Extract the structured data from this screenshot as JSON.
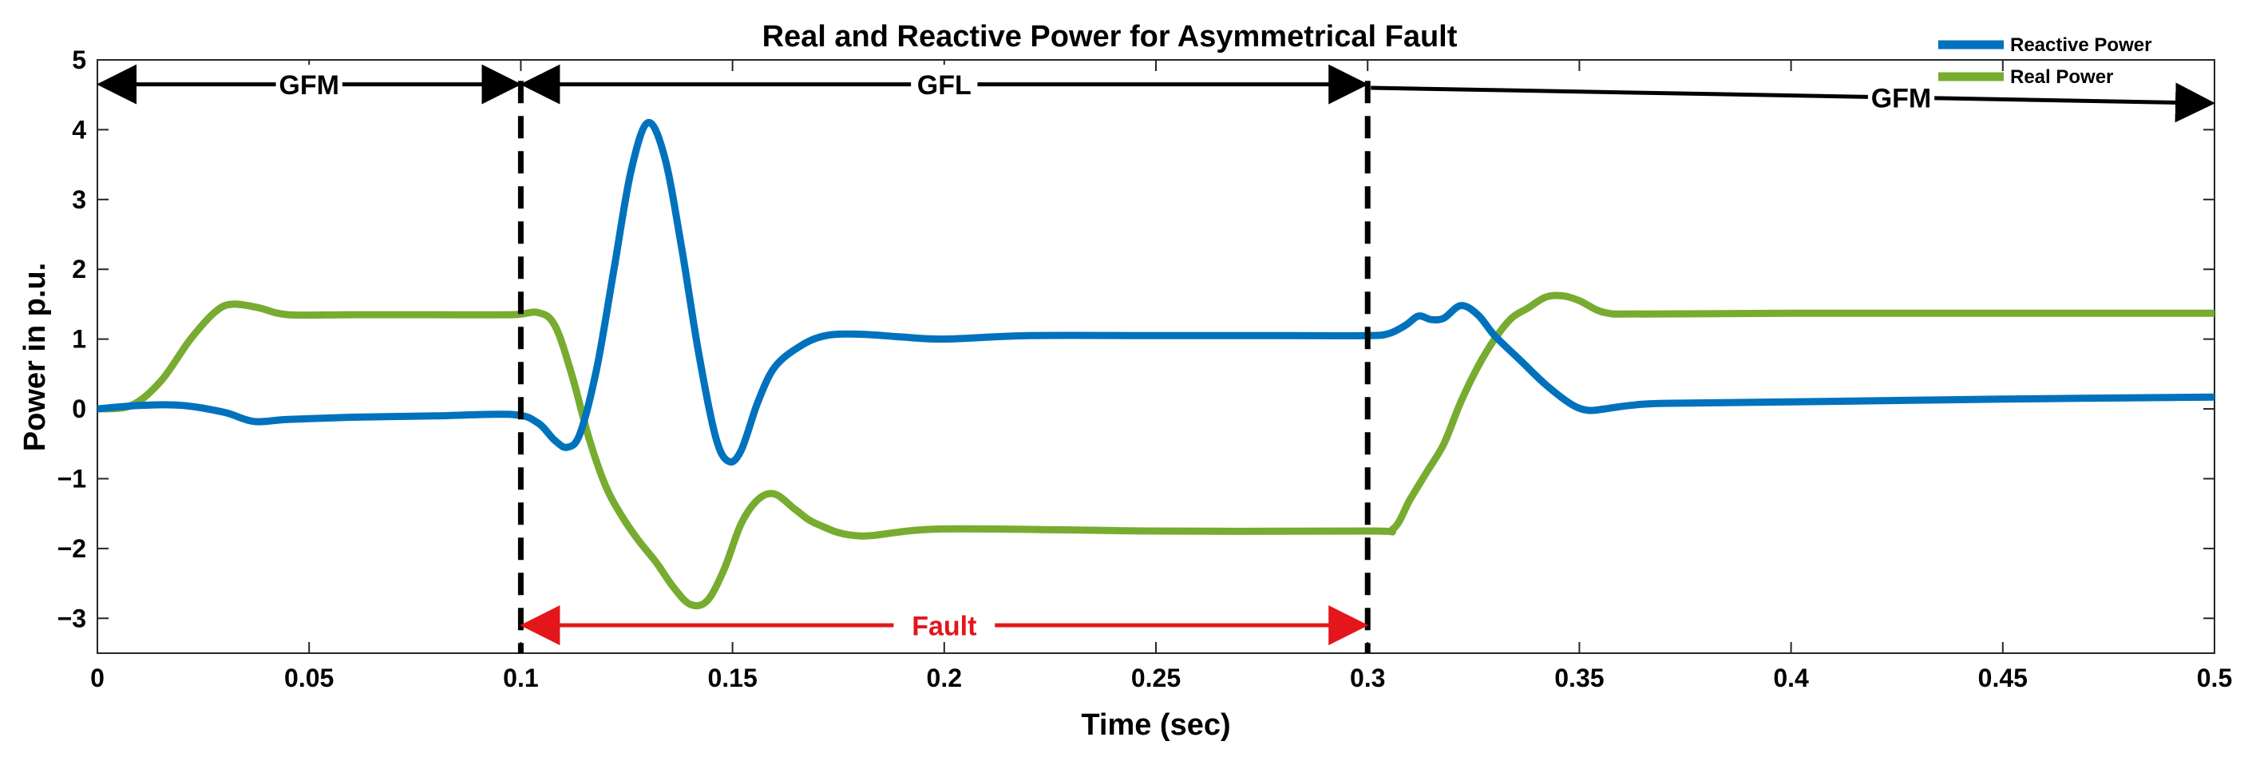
{
  "chart_data": {
    "type": "line",
    "title": "Real and Reactive Power for Asymmetrical Fault",
    "xlabel": "Time (sec)",
    "ylabel": "Power in p.u.",
    "xlim": [
      0,
      0.5
    ],
    "ylim": [
      -3.5,
      5
    ],
    "xticks": [
      0,
      0.05,
      0.1,
      0.15,
      0.2,
      0.25,
      0.3,
      0.35,
      0.4,
      0.45,
      0.5
    ],
    "xtick_labels": [
      "0",
      "0.05",
      "0.1",
      "0.15",
      "0.2",
      "0.25",
      "0.3",
      "0.35",
      "0.4",
      "0.45",
      "0.5"
    ],
    "yticks": [
      -3,
      -2,
      -1,
      0,
      1,
      2,
      3,
      4,
      5
    ],
    "ytick_labels": [
      "−3",
      "−2",
      "−1",
      "0",
      "1",
      "2",
      "3",
      "4",
      "5"
    ],
    "grid": false,
    "legend_position": "top-right",
    "series": [
      {
        "name": "Reactive Power",
        "color": "#0072BD",
        "x": [
          0,
          0.01,
          0.02,
          0.03,
          0.037,
          0.045,
          0.06,
          0.08,
          0.098,
          0.104,
          0.108,
          0.111,
          0.114,
          0.118,
          0.122,
          0.126,
          0.13,
          0.134,
          0.138,
          0.142,
          0.146,
          0.149,
          0.152,
          0.156,
          0.16,
          0.166,
          0.172,
          0.18,
          0.19,
          0.2,
          0.22,
          0.25,
          0.28,
          0.3,
          0.305,
          0.309,
          0.312,
          0.315,
          0.318,
          0.322,
          0.326,
          0.33,
          0.336,
          0.342,
          0.348,
          0.352,
          0.356,
          0.362,
          0.37,
          0.4,
          0.45,
          0.5
        ],
        "values": [
          0,
          0.05,
          0.05,
          -0.05,
          -0.18,
          -0.15,
          -0.12,
          -0.1,
          -0.08,
          -0.2,
          -0.45,
          -0.55,
          -0.35,
          0.6,
          2.0,
          3.4,
          4.1,
          3.6,
          2.3,
          0.8,
          -0.4,
          -0.75,
          -0.6,
          0.1,
          0.6,
          0.9,
          1.05,
          1.07,
          1.03,
          1.0,
          1.05,
          1.05,
          1.05,
          1.05,
          1.08,
          1.2,
          1.33,
          1.28,
          1.3,
          1.48,
          1.35,
          1.05,
          0.7,
          0.35,
          0.07,
          -0.02,
          0.0,
          0.05,
          0.08,
          0.1,
          0.14,
          0.17
        ]
      },
      {
        "name": "Real Power",
        "color": "#77AC30",
        "x": [
          0,
          0.008,
          0.015,
          0.022,
          0.028,
          0.032,
          0.038,
          0.045,
          0.06,
          0.08,
          0.098,
          0.104,
          0.108,
          0.112,
          0.116,
          0.12,
          0.124,
          0.128,
          0.132,
          0.136,
          0.14,
          0.144,
          0.148,
          0.152,
          0.156,
          0.16,
          0.165,
          0.17,
          0.18,
          0.2,
          0.25,
          0.3,
          0.306,
          0.31,
          0.314,
          0.318,
          0.322,
          0.326,
          0.33,
          0.334,
          0.338,
          0.342,
          0.346,
          0.35,
          0.356,
          0.365,
          0.4,
          0.45,
          0.5
        ],
        "values": [
          0,
          0.05,
          0.4,
          1.0,
          1.4,
          1.5,
          1.45,
          1.35,
          1.35,
          1.35,
          1.35,
          1.38,
          1.2,
          0.5,
          -0.4,
          -1.1,
          -1.55,
          -1.9,
          -2.2,
          -2.55,
          -2.8,
          -2.75,
          -2.3,
          -1.65,
          -1.3,
          -1.22,
          -1.45,
          -1.65,
          -1.82,
          -1.72,
          -1.75,
          -1.75,
          -1.72,
          -1.3,
          -0.9,
          -0.5,
          0.1,
          0.6,
          1.0,
          1.3,
          1.45,
          1.6,
          1.62,
          1.55,
          1.38,
          1.36,
          1.37,
          1.37,
          1.37
        ]
      }
    ],
    "annotations": [
      {
        "label": "GFM",
        "x_start": 0,
        "x_end": 0.1,
        "y": 4.65,
        "arrows": "both",
        "color": "#000000"
      },
      {
        "label": "GFL",
        "x_start": 0.1,
        "x_end": 0.3,
        "y": 4.65,
        "arrows": "both",
        "color": "#000000"
      },
      {
        "label": "GFM",
        "x_start": 0.3,
        "x_end": 0.5,
        "y": 4.6,
        "y_end": 4.38,
        "arrows": "right",
        "color": "#000000"
      },
      {
        "label": "Fault",
        "x_start": 0.1,
        "x_end": 0.3,
        "y": -3.1,
        "arrows": "both",
        "color": "#e3161b"
      }
    ],
    "vertical_lines": [
      0.1,
      0.3
    ]
  }
}
